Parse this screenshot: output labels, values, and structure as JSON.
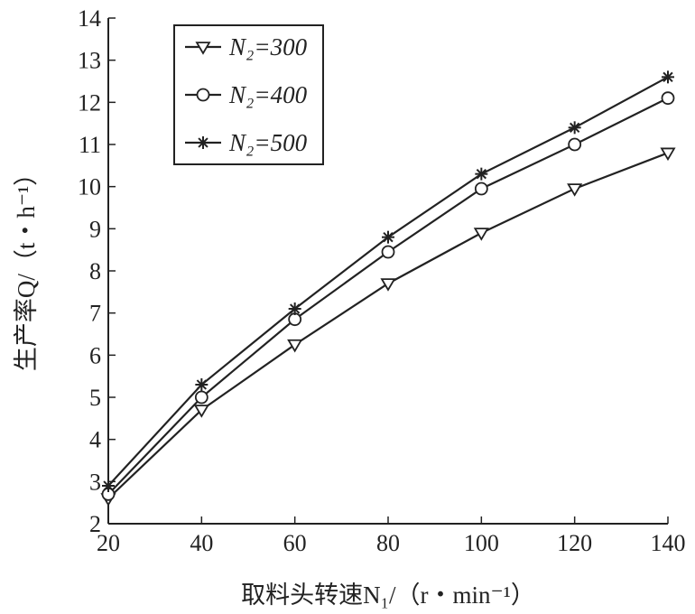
{
  "chart_data": {
    "type": "line",
    "x": [
      20,
      40,
      60,
      80,
      100,
      120,
      140
    ],
    "xlim": [
      20,
      140
    ],
    "ylim": [
      2,
      14
    ],
    "xticks": [
      "20",
      "40",
      "60",
      "80",
      "100",
      "120",
      "140"
    ],
    "yticks": [
      "2",
      "3",
      "4",
      "5",
      "6",
      "7",
      "8",
      "9",
      "10",
      "11",
      "12",
      "13",
      "14"
    ],
    "xlabel": "取料头转速N₁/（r・min⁻¹）",
    "ylabel": "生产率Q/（t・h⁻¹）",
    "grid": false,
    "legend_position": "top-left",
    "series": [
      {
        "name": "N₂=300",
        "marker": "triangle-down",
        "values": [
          2.6,
          4.7,
          6.25,
          7.7,
          8.9,
          9.95,
          10.8
        ]
      },
      {
        "name": "N₂=400",
        "marker": "circle",
        "values": [
          2.7,
          5.0,
          6.85,
          8.45,
          9.95,
          11.0,
          12.1
        ]
      },
      {
        "name": "N₂=500",
        "marker": "star",
        "values": [
          2.9,
          5.3,
          7.1,
          8.8,
          10.3,
          11.4,
          12.6
        ]
      }
    ]
  }
}
